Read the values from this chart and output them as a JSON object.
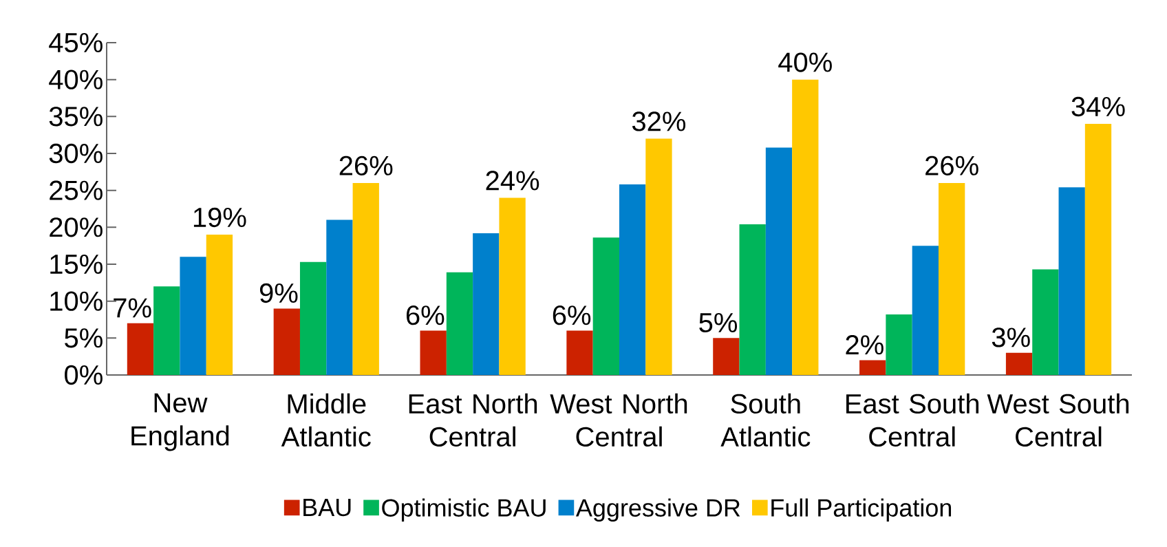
{
  "chart_data": {
    "type": "bar",
    "categories": [
      "New England",
      "Middle Atlantic",
      "East North Central",
      "West North Central",
      "South Atlantic",
      "East South Central",
      "West South Central"
    ],
    "series": [
      {
        "name": "BAU",
        "color": "#cc2200",
        "values": [
          7,
          9,
          6,
          6,
          5,
          2,
          3
        ],
        "value_labels": [
          "7%",
          "9%",
          "6%",
          "6%",
          "5%",
          "2%",
          "3%"
        ]
      },
      {
        "name": "Optimistic BAU",
        "color": "#00b55a",
        "values": [
          12,
          15.3,
          13.9,
          18.6,
          20.4,
          8.2,
          14.3
        ]
      },
      {
        "name": "Aggressive DR",
        "color": "#0080cc",
        "values": [
          16,
          21,
          19.2,
          25.8,
          30.8,
          17.5,
          25.4
        ]
      },
      {
        "name": "Full Participation",
        "color": "#ffc800",
        "values": [
          19,
          26,
          24,
          32,
          40,
          26,
          34
        ],
        "value_labels": [
          "19%",
          "26%",
          "24%",
          "32%",
          "40%",
          "26%",
          "34%"
        ]
      }
    ],
    "ylim": [
      0,
      45
    ],
    "yticks": [
      {
        "value": 0,
        "label": "0%"
      },
      {
        "value": 5,
        "label": "5%"
      },
      {
        "value": 10,
        "label": "10%"
      },
      {
        "value": 15,
        "label": "15%"
      },
      {
        "value": 20,
        "label": "20%"
      },
      {
        "value": 25,
        "label": "25%"
      },
      {
        "value": 30,
        "label": "30%"
      },
      {
        "value": 35,
        "label": "35%"
      },
      {
        "value": 40,
        "label": "40%"
      },
      {
        "value": 45,
        "label": "45%"
      }
    ],
    "grid": false,
    "legend": "bottom"
  }
}
